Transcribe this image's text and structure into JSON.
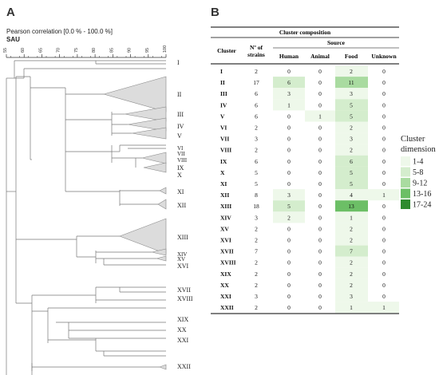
{
  "panel_a": {
    "label": "A",
    "title": "Pearson correlation [0.0 % - 100.0 %]",
    "subtitle": "SAU",
    "scale_ticks": [
      "55",
      "60",
      "65",
      "70",
      "75",
      "80",
      "85",
      "90",
      "95",
      "100"
    ],
    "clusters": [
      "I",
      "II",
      "III",
      "IV",
      "V",
      "VI",
      "VII",
      "VIII",
      "IX",
      "X",
      "XI",
      "XII",
      "XIII",
      "XIV",
      "XV",
      "XVI",
      "XVII",
      "XVIII",
      "XIX",
      "XX",
      "XXI",
      "XXII"
    ]
  },
  "panel_b": {
    "label": "B",
    "table_title": "Cluster composition",
    "source_header": "Source",
    "columns": {
      "cluster": "Cluster",
      "strains_line1": "Nº of",
      "strains_line2": "strains",
      "human": "Human",
      "animal": "Animal",
      "food": "Food",
      "unknown": "Unknown"
    },
    "rows": [
      {
        "cluster": "I",
        "strains": "2",
        "human": "0",
        "animal": "0",
        "food": "2",
        "unknown": "0"
      },
      {
        "cluster": "II",
        "strains": "17",
        "human": "6",
        "animal": "0",
        "food": "11",
        "unknown": "0"
      },
      {
        "cluster": "III",
        "strains": "6",
        "human": "3",
        "animal": "0",
        "food": "3",
        "unknown": "0"
      },
      {
        "cluster": "IV",
        "strains": "6",
        "human": "1",
        "animal": "0",
        "food": "5",
        "unknown": "0"
      },
      {
        "cluster": "V",
        "strains": "6",
        "human": "0",
        "animal": "1",
        "food": "5",
        "unknown": "0"
      },
      {
        "cluster": "VI",
        "strains": "2",
        "human": "0",
        "animal": "0",
        "food": "2",
        "unknown": "0"
      },
      {
        "cluster": "VII",
        "strains": "3",
        "human": "0",
        "animal": "0",
        "food": "3",
        "unknown": "0"
      },
      {
        "cluster": "VIII",
        "strains": "2",
        "human": "0",
        "animal": "0",
        "food": "2",
        "unknown": "0"
      },
      {
        "cluster": "IX",
        "strains": "6",
        "human": "0",
        "animal": "0",
        "food": "6",
        "unknown": "0"
      },
      {
        "cluster": "X",
        "strains": "5",
        "human": "0",
        "animal": "0",
        "food": "5",
        "unknown": "0"
      },
      {
        "cluster": "XI",
        "strains": "5",
        "human": "0",
        "animal": "0",
        "food": "5",
        "unknown": "0"
      },
      {
        "cluster": "XII",
        "strains": "8",
        "human": "3",
        "animal": "0",
        "food": "4",
        "unknown": "1"
      },
      {
        "cluster": "XIII",
        "strains": "18",
        "human": "5",
        "animal": "0",
        "food": "13",
        "unknown": "0"
      },
      {
        "cluster": "XIV",
        "strains": "3",
        "human": "2",
        "animal": "0",
        "food": "1",
        "unknown": "0"
      },
      {
        "cluster": "XV",
        "strains": "2",
        "human": "0",
        "animal": "0",
        "food": "2",
        "unknown": "0"
      },
      {
        "cluster": "XVI",
        "strains": "2",
        "human": "0",
        "animal": "0",
        "food": "2",
        "unknown": "0"
      },
      {
        "cluster": "XVII",
        "strains": "7",
        "human": "0",
        "animal": "0",
        "food": "7",
        "unknown": "0"
      },
      {
        "cluster": "XVIII",
        "strains": "2",
        "human": "0",
        "animal": "0",
        "food": "2",
        "unknown": "0"
      },
      {
        "cluster": "XIX",
        "strains": "2",
        "human": "0",
        "animal": "0",
        "food": "2",
        "unknown": "0"
      },
      {
        "cluster": "XX",
        "strains": "2",
        "human": "0",
        "animal": "0",
        "food": "2",
        "unknown": "0"
      },
      {
        "cluster": "XXI",
        "strains": "3",
        "human": "0",
        "animal": "0",
        "food": "3",
        "unknown": "0"
      },
      {
        "cluster": "XXII",
        "strains": "2",
        "human": "0",
        "animal": "0",
        "food": "1",
        "unknown": "1"
      }
    ]
  },
  "legend": {
    "title_line1": "Cluster",
    "title_line2": "dimension",
    "items": [
      {
        "label": "1-4",
        "color": "#eef8ea"
      },
      {
        "label": "5-8",
        "color": "#d4edcd"
      },
      {
        "label": "9-12",
        "color": "#a9dba0"
      },
      {
        "label": "13-16",
        "color": "#6cbf66"
      },
      {
        "label": "17-24",
        "color": "#2e8b2e"
      }
    ]
  }
}
